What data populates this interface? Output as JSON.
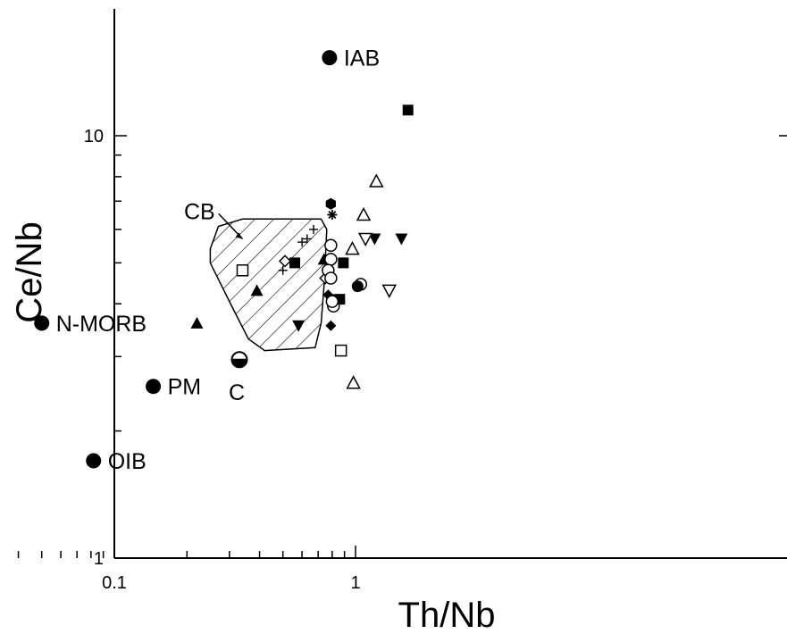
{
  "chart_data": {
    "type": "scatter",
    "xscale": "log",
    "yscale": "log",
    "xlim": [
      0.02,
      1.8
    ],
    "ylim": [
      1,
      15
    ],
    "xlabel": "Th/Nb",
    "ylabel": "Ce/Nb",
    "x_ticks": [
      {
        "value": 0.1,
        "label": "0.1"
      },
      {
        "value": 1,
        "label": "1"
      }
    ],
    "y_ticks": [
      {
        "value": 1,
        "label": "1"
      },
      {
        "value": 10,
        "label": "10"
      }
    ],
    "reference_points": [
      {
        "label": "IAB",
        "x": 0.78,
        "y": 15.3,
        "symbol": "filled-circle"
      },
      {
        "label": "N-MORB",
        "x": 0.05,
        "y": 3.6,
        "symbol": "filled-circle"
      },
      {
        "label": "PM",
        "x": 0.145,
        "y": 2.55,
        "symbol": "filled-circle"
      },
      {
        "label": "OIB",
        "x": 0.082,
        "y": 1.7,
        "symbol": "filled-circle"
      },
      {
        "label": "C",
        "x": 0.33,
        "y": 2.95,
        "symbol": "half-circle"
      }
    ],
    "field": {
      "label": "CB",
      "pattern": "hatched",
      "polygon": [
        [
          0.27,
          6.1
        ],
        [
          0.34,
          6.35
        ],
        [
          0.72,
          6.35
        ],
        [
          0.76,
          6.0
        ],
        [
          0.74,
          4.4
        ],
        [
          0.72,
          3.6
        ],
        [
          0.68,
          3.15
        ],
        [
          0.42,
          3.1
        ],
        [
          0.36,
          3.3
        ],
        [
          0.31,
          3.9
        ],
        [
          0.25,
          5.0
        ],
        [
          0.25,
          5.4
        ]
      ],
      "label_point": [
        0.28,
        6.6
      ],
      "leader_to": [
        0.34,
        5.7
      ]
    },
    "points": [
      {
        "x": 0.22,
        "y": 3.6,
        "symbol": "filled-triangle-up"
      },
      {
        "x": 0.39,
        "y": 4.3,
        "symbol": "filled-triangle-up"
      },
      {
        "x": 0.74,
        "y": 5.1,
        "symbol": "filled-triangle-up"
      },
      {
        "x": 0.34,
        "y": 4.8,
        "symbol": "open-square"
      },
      {
        "x": 0.87,
        "y": 3.1,
        "symbol": "open-square"
      },
      {
        "x": 0.56,
        "y": 5.0,
        "symbol": "filled-square"
      },
      {
        "x": 0.89,
        "y": 5.0,
        "symbol": "filled-square"
      },
      {
        "x": 0.86,
        "y": 4.1,
        "symbol": "filled-square"
      },
      {
        "x": 1.65,
        "y": 11.5,
        "symbol": "filled-square"
      },
      {
        "x": 0.58,
        "y": 3.55,
        "symbol": "filled-triangle-down"
      },
      {
        "x": 1.2,
        "y": 5.7,
        "symbol": "filled-triangle-down"
      },
      {
        "x": 1.55,
        "y": 5.7,
        "symbol": "filled-triangle-down"
      },
      {
        "x": 1.1,
        "y": 5.7,
        "symbol": "open-triangle-down"
      },
      {
        "x": 1.38,
        "y": 4.3,
        "symbol": "open-triangle-down"
      },
      {
        "x": 0.97,
        "y": 5.4,
        "symbol": "open-triangle-up"
      },
      {
        "x": 1.08,
        "y": 6.5,
        "symbol": "open-triangle-up"
      },
      {
        "x": 1.22,
        "y": 7.8,
        "symbol": "open-triangle-up"
      },
      {
        "x": 0.98,
        "y": 2.6,
        "symbol": "open-triangle-up"
      },
      {
        "x": 0.51,
        "y": 5.05,
        "symbol": "open-diamond"
      },
      {
        "x": 0.75,
        "y": 4.6,
        "symbol": "open-diamond"
      },
      {
        "x": 0.77,
        "y": 4.2,
        "symbol": "filled-diamond"
      },
      {
        "x": 0.81,
        "y": 4.1,
        "symbol": "filled-diamond"
      },
      {
        "x": 0.79,
        "y": 3.55,
        "symbol": "filled-diamond"
      },
      {
        "x": 0.79,
        "y": 5.5,
        "symbol": "open-circle"
      },
      {
        "x": 0.79,
        "y": 5.1,
        "symbol": "open-circle"
      },
      {
        "x": 0.77,
        "y": 4.8,
        "symbol": "open-circle"
      },
      {
        "x": 0.79,
        "y": 4.6,
        "symbol": "open-circle"
      },
      {
        "x": 0.81,
        "y": 3.95,
        "symbol": "open-circle"
      },
      {
        "x": 0.8,
        "y": 4.05,
        "symbol": "open-circle"
      },
      {
        "x": 1.05,
        "y": 4.45,
        "symbol": "open-circle"
      },
      {
        "x": 1.02,
        "y": 4.4,
        "symbol": "filled-circle"
      },
      {
        "x": 0.79,
        "y": 6.9,
        "symbol": "filled-hexagon"
      },
      {
        "x": 0.8,
        "y": 6.5,
        "symbol": "asterisk"
      },
      {
        "x": 0.5,
        "y": 4.8,
        "symbol": "plus"
      },
      {
        "x": 0.6,
        "y": 5.6,
        "symbol": "plus"
      },
      {
        "x": 0.63,
        "y": 5.7,
        "symbol": "plus"
      },
      {
        "x": 0.67,
        "y": 6.0,
        "symbol": "plus"
      }
    ]
  }
}
